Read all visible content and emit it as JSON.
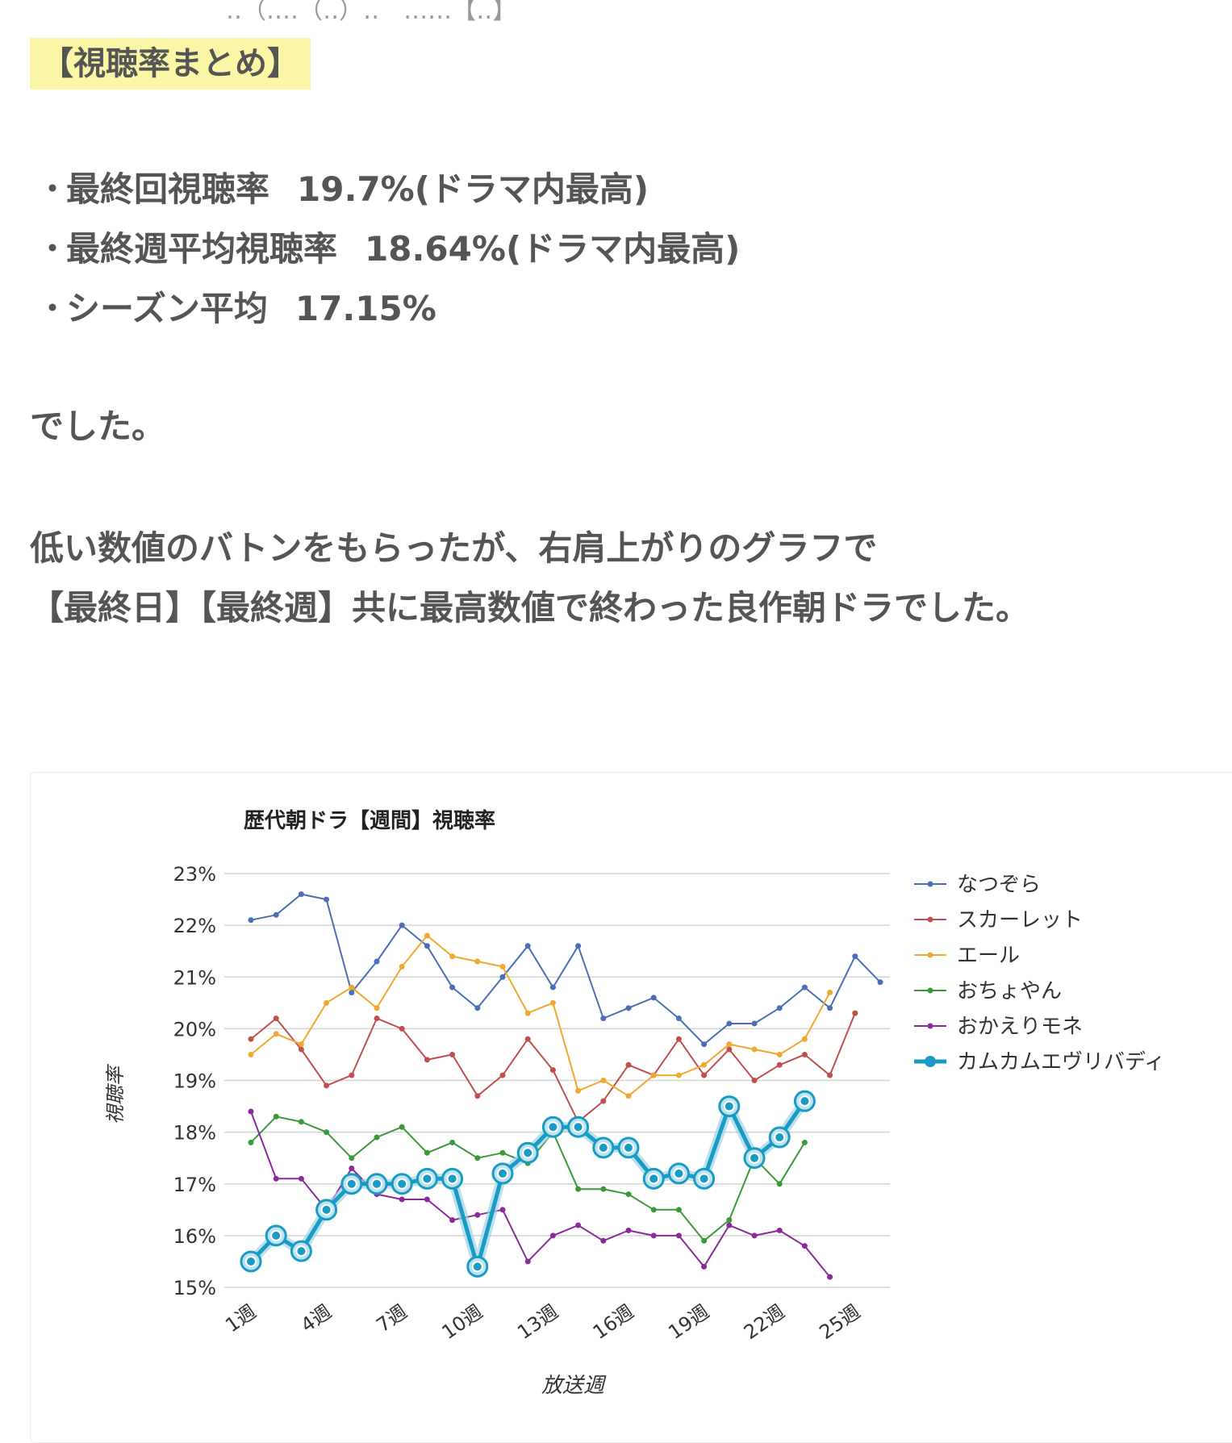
{
  "heading": "【視聴率まとめ】",
  "bullets": [
    {
      "marker": "・",
      "label": "最終回視聴率",
      "value": "19.7%(ドラマ内最高)"
    },
    {
      "marker": "・",
      "label": "最終週平均視聴率",
      "value": "18.64%(ドラマ内最高)"
    },
    {
      "marker": "・",
      "label": "シーズン平均",
      "value": "17.15%"
    }
  ],
  "paragraph1": "でした。",
  "paragraph2_line1": "低い数値のバトンをもらったが、右肩上がりのグラフで",
  "paragraph2_line2": "【最終日】【最終週】共に最高数値で終わった良作朝ドラでした。",
  "chart_data": {
    "type": "line",
    "title": "歴代朝ドラ【週間】視聴率",
    "xlabel": "放送週",
    "ylabel": "視聴率",
    "ylim": [
      15,
      23
    ],
    "y_ticks": [
      "15%",
      "16%",
      "17%",
      "18%",
      "19%",
      "20%",
      "21%",
      "22%",
      "23%"
    ],
    "x_tick_labels": [
      "1週",
      "4週",
      "7週",
      "10週",
      "13週",
      "16週",
      "19週",
      "22週",
      "25週"
    ],
    "x_tick_weeks": [
      1,
      4,
      7,
      10,
      13,
      16,
      19,
      22,
      25
    ],
    "grid": true,
    "legend_position": "right",
    "series": [
      {
        "name": "なつぞら",
        "color": "#4a6fb5",
        "highlight": false,
        "values": [
          22.1,
          22.2,
          22.6,
          22.5,
          20.7,
          21.3,
          22.0,
          21.6,
          20.8,
          20.4,
          21.0,
          21.6,
          20.8,
          21.6,
          20.2,
          20.4,
          20.6,
          20.2,
          19.7,
          20.1,
          20.1,
          20.4,
          20.8,
          20.4,
          21.4,
          20.9
        ]
      },
      {
        "name": "スカーレット",
        "color": "#c0504d",
        "highlight": false,
        "values": [
          19.8,
          20.2,
          19.6,
          18.9,
          19.1,
          20.2,
          20.0,
          19.4,
          19.5,
          18.7,
          19.1,
          19.8,
          19.2,
          18.2,
          18.6,
          19.3,
          19.1,
          19.8,
          19.1,
          19.6,
          19.0,
          19.3,
          19.5,
          19.1,
          20.3
        ]
      },
      {
        "name": "エール",
        "color": "#f0a830",
        "highlight": false,
        "values": [
          19.5,
          19.9,
          19.7,
          20.5,
          20.8,
          20.4,
          21.2,
          21.8,
          21.4,
          21.3,
          21.2,
          20.3,
          20.5,
          18.8,
          19.0,
          18.7,
          19.1,
          19.1,
          19.3,
          19.7,
          19.6,
          19.5,
          19.8,
          20.7
        ]
      },
      {
        "name": "おちょやん",
        "color": "#3a9a3a",
        "highlight": false,
        "values": [
          17.8,
          18.3,
          18.2,
          18.0,
          17.5,
          17.9,
          18.1,
          17.6,
          17.8,
          17.5,
          17.6,
          17.4,
          18.0,
          16.9,
          16.9,
          16.8,
          16.5,
          16.5,
          15.9,
          16.3,
          17.5,
          17.0,
          17.8
        ]
      },
      {
        "name": "おかえりモネ",
        "color": "#8b2a99",
        "highlight": false,
        "values": [
          18.4,
          17.1,
          17.1,
          16.5,
          17.3,
          16.8,
          16.7,
          16.7,
          16.3,
          16.4,
          16.5,
          15.5,
          16.0,
          16.2,
          15.9,
          16.1,
          16.0,
          16.0,
          15.4,
          16.2,
          16.0,
          16.1,
          15.8,
          15.2
        ]
      },
      {
        "name": "カムカムエヴリバディ",
        "color": "#1a9bc4",
        "highlight": true,
        "values": [
          15.5,
          16.0,
          15.7,
          16.5,
          17.0,
          17.0,
          17.0,
          17.1,
          17.1,
          15.4,
          17.2,
          17.6,
          18.1,
          18.1,
          17.7,
          17.7,
          17.1,
          17.2,
          17.1,
          18.5,
          17.5,
          17.9,
          18.6
        ]
      }
    ]
  }
}
